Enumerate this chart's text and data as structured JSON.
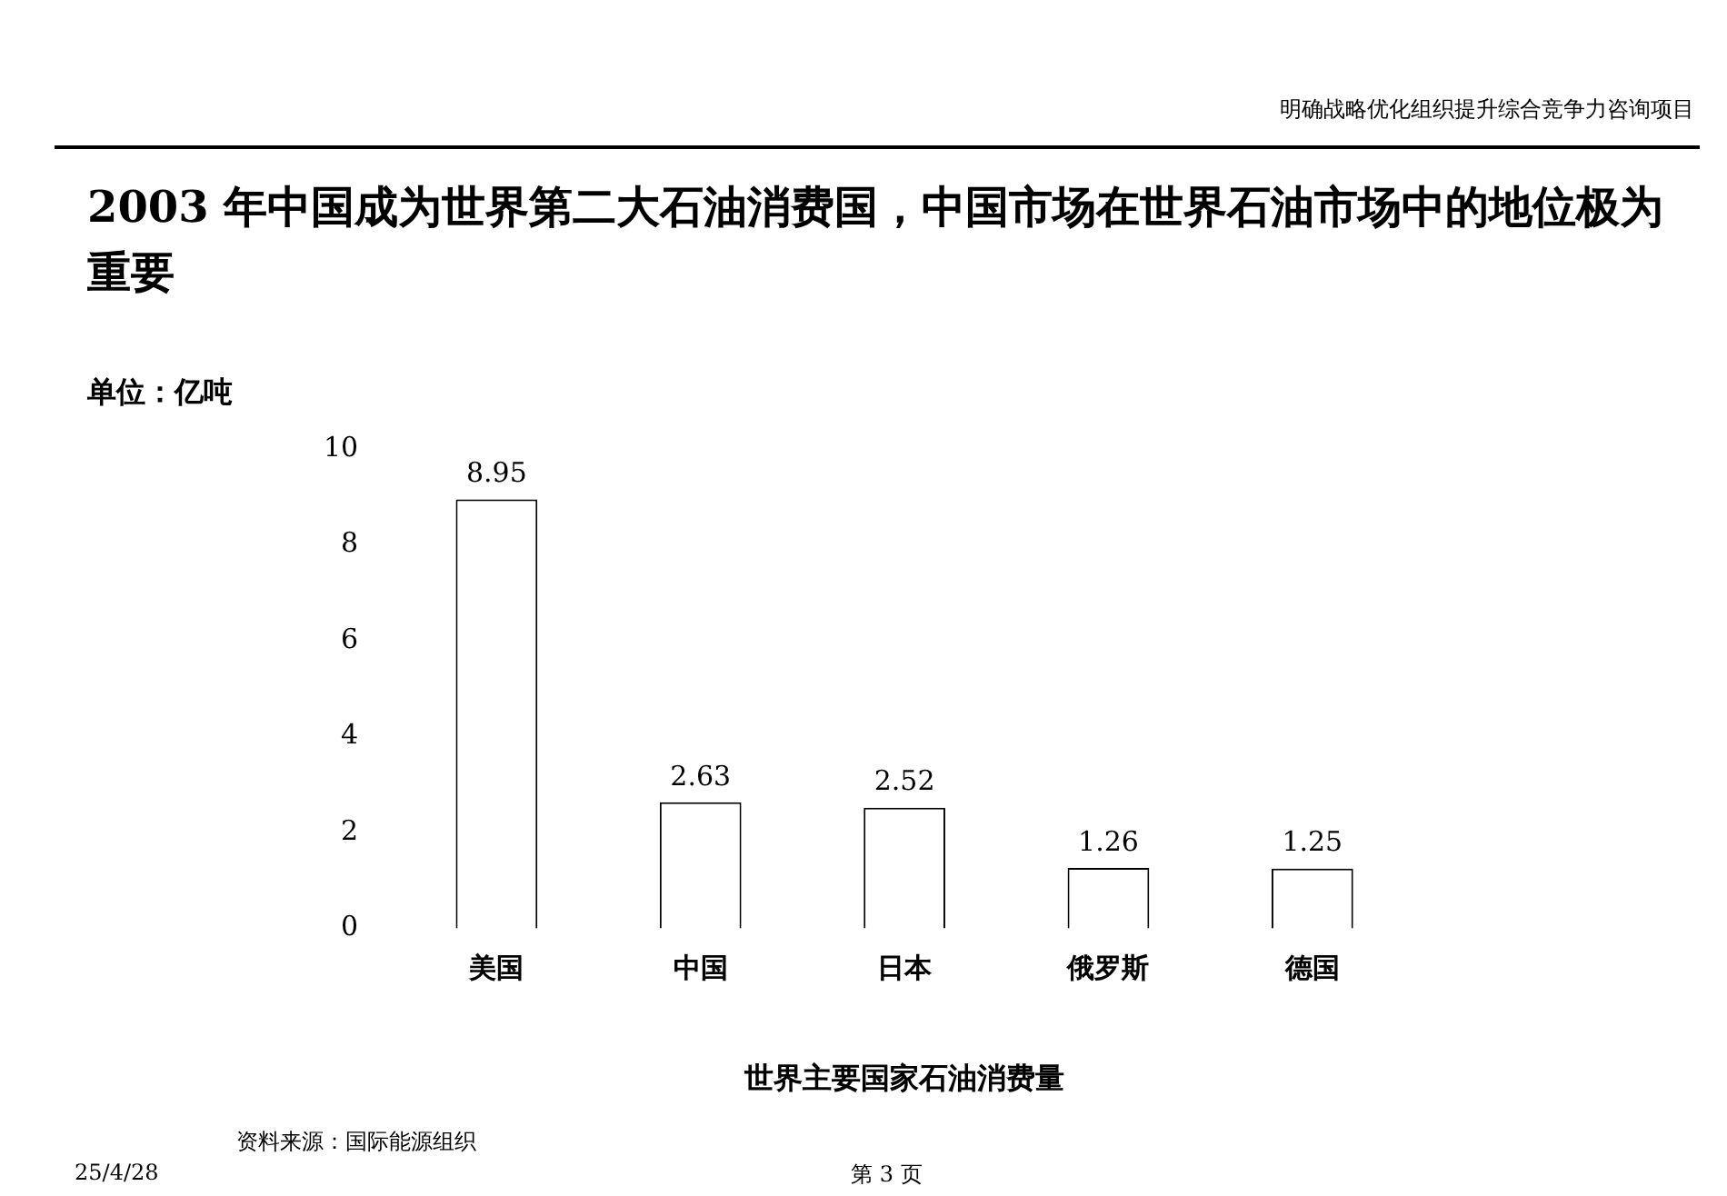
{
  "chart_data": {
    "type": "bar",
    "title": "2003 年中国成为世界第二大石油消费国，中国市场在世界石油市场中的地位极为重要",
    "ylabel": "单位：亿吨",
    "xlabel": "世界主要国家石油消费量",
    "categories": [
      "美国",
      "中国",
      "日本",
      "俄罗斯",
      "德国"
    ],
    "values": [
      8.95,
      2.63,
      2.52,
      1.26,
      1.25
    ],
    "color": "#ffffff",
    "ylim": [
      0,
      10
    ],
    "yticks": [
      0,
      2,
      4,
      6,
      8,
      10
    ],
    "grid": false,
    "data_labels": true,
    "annotations": [
      "明确战略优化组织提升综合竞争力咨询项目",
      "资料来源：国际能源组织",
      "25/4/28",
      "第 3 页"
    ]
  }
}
